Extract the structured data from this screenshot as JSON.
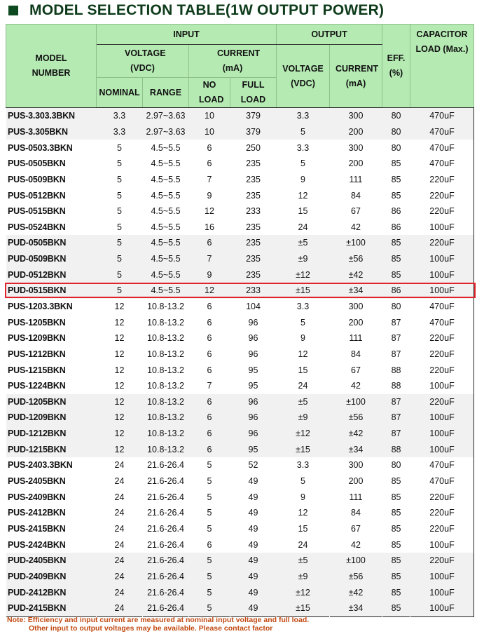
{
  "title": "MODEL SELECTION TABLE(1W OUTPUT POWER)",
  "header": {
    "model": "MODEL NUMBER",
    "input": "INPUT",
    "output": "OUTPUT",
    "in_voltage": "VOLTAGE (VDC)",
    "in_current": "CURRENT (mA)",
    "nominal": "NOMINAL",
    "range": "RANGE",
    "no_load": "NO LOAD",
    "full_load": "FULL LOAD",
    "out_voltage": "VOLTAGE (VDC)",
    "out_current": "CURRENT (mA)",
    "eff": "EFF. (%)",
    "cap": "CAPACITOR LOAD (Max.)"
  },
  "highlight_color": "#e0242b",
  "header_color": "#b5eab3",
  "rows": [
    [
      "PUS-3.303.3BKN",
      "3.3",
      "2.97~3.63",
      "10",
      "379",
      "3.3",
      "300",
      "80",
      "470uF"
    ],
    [
      "PUS-3.305BKN",
      "3.3",
      "2.97~3.63",
      "10",
      "379",
      "5",
      "200",
      "80",
      "470uF"
    ],
    [
      "PUS-0503.3BKN",
      "5",
      "4.5~5.5",
      "6",
      "250",
      "3.3",
      "300",
      "80",
      "470uF"
    ],
    [
      "PUS-0505BKN",
      "5",
      "4.5~5.5",
      "6",
      "235",
      "5",
      "200",
      "85",
      "470uF"
    ],
    [
      "PUS-0509BKN",
      "5",
      "4.5~5.5",
      "7",
      "235",
      "9",
      "111",
      "85",
      "220uF"
    ],
    [
      "PUS-0512BKN",
      "5",
      "4.5~5.5",
      "9",
      "235",
      "12",
      "84",
      "85",
      "220uF"
    ],
    [
      "PUS-0515BKN",
      "5",
      "4.5~5.5",
      "12",
      "233",
      "15",
      "67",
      "86",
      "220uF"
    ],
    [
      "PUS-0524BKN",
      "5",
      "4.5~5.5",
      "16",
      "235",
      "24",
      "42",
      "86",
      "100uF"
    ],
    [
      "PUD-0505BKN",
      "5",
      "4.5~5.5",
      "6",
      "235",
      "±5",
      "±100",
      "85",
      "220uF"
    ],
    [
      "PUD-0509BKN",
      "5",
      "4.5~5.5",
      "7",
      "235",
      "±9",
      "±56",
      "85",
      "100uF"
    ],
    [
      "PUD-0512BKN",
      "5",
      "4.5~5.5",
      "9",
      "235",
      "±12",
      "±42",
      "85",
      "100uF"
    ],
    [
      "PUD-0515BKN",
      "5",
      "4.5~5.5",
      "12",
      "233",
      "±15",
      "±34",
      "86",
      "100uF"
    ],
    [
      "PUS-1203.3BKN",
      "12",
      "10.8-13.2",
      "6",
      "104",
      "3.3",
      "300",
      "80",
      "470uF"
    ],
    [
      "PUS-1205BKN",
      "12",
      "10.8-13.2",
      "6",
      "96",
      "5",
      "200",
      "87",
      "470uF"
    ],
    [
      "PUS-1209BKN",
      "12",
      "10.8-13.2",
      "6",
      "96",
      "9",
      "111",
      "87",
      "220uF"
    ],
    [
      "PUS-1212BKN",
      "12",
      "10.8-13.2",
      "6",
      "96",
      "12",
      "84",
      "87",
      "220uF"
    ],
    [
      "PUS-1215BKN",
      "12",
      "10.8-13.2",
      "6",
      "95",
      "15",
      "67",
      "88",
      "220uF"
    ],
    [
      "PUS-1224BKN",
      "12",
      "10.8-13.2",
      "7",
      "95",
      "24",
      "42",
      "88",
      "100uF"
    ],
    [
      "PUD-1205BKN",
      "12",
      "10.8-13.2",
      "6",
      "96",
      "±5",
      "±100",
      "87",
      "220uF"
    ],
    [
      "PUD-1209BKN",
      "12",
      "10.8-13.2",
      "6",
      "96",
      "±9",
      "±56",
      "87",
      "100uF"
    ],
    [
      "PUD-1212BKN",
      "12",
      "10.8-13.2",
      "6",
      "96",
      "±12",
      "±42",
      "87",
      "100uF"
    ],
    [
      "PUD-1215BKN",
      "12",
      "10.8-13.2",
      "6",
      "95",
      "±15",
      "±34",
      "88",
      "100uF"
    ],
    [
      "PUS-2403.3BKN",
      "24",
      "21.6-26.4",
      "5",
      "52",
      "3.3",
      "300",
      "80",
      "470uF"
    ],
    [
      "PUS-2405BKN",
      "24",
      "21.6-26.4",
      "5",
      "49",
      "5",
      "200",
      "85",
      "470uF"
    ],
    [
      "PUS-2409BKN",
      "24",
      "21.6-26.4",
      "5",
      "49",
      "9",
      "111",
      "85",
      "220uF"
    ],
    [
      "PUS-2412BKN",
      "24",
      "21.6-26.4",
      "5",
      "49",
      "12",
      "84",
      "85",
      "220uF"
    ],
    [
      "PUS-2415BKN",
      "24",
      "21.6-26.4",
      "5",
      "49",
      "15",
      "67",
      "85",
      "220uF"
    ],
    [
      "PUS-2424BKN",
      "24",
      "21.6-26.4",
      "6",
      "49",
      "24",
      "42",
      "85",
      "100uF"
    ],
    [
      "PUD-2405BKN",
      "24",
      "21.6-26.4",
      "5",
      "49",
      "±5",
      "±100",
      "85",
      "220uF"
    ],
    [
      "PUD-2409BKN",
      "24",
      "21.6-26.4",
      "5",
      "49",
      "±9",
      "±56",
      "85",
      "100uF"
    ],
    [
      "PUD-2412BKN",
      "24",
      "21.6-26.4",
      "5",
      "49",
      "±12",
      "±42",
      "85",
      "100uF"
    ],
    [
      "PUD-2415BKN",
      "24",
      "21.6-26.4",
      "5",
      "49",
      "±15",
      "±34",
      "85",
      "100uF"
    ]
  ],
  "note": {
    "line1": "Note: Efficiency and input current are measured at nominal input voltage and full load.",
    "line2": "Other input to output voltages may be available. Please contact factor"
  }
}
